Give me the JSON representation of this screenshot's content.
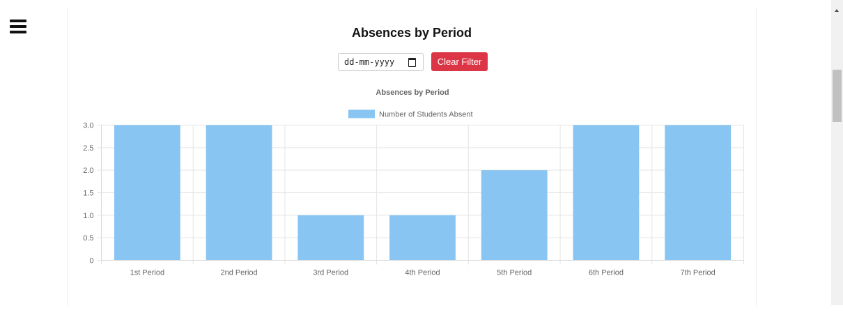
{
  "header": {
    "menu_icon": "hamburger-menu-icon"
  },
  "page": {
    "title": "Absences by Period"
  },
  "filter": {
    "date_placeholder": "dd-mm-yyyy",
    "calendar_icon": "calendar-icon",
    "clear_label": "Clear Filter",
    "clear_color": "#dc3545"
  },
  "chart_data": {
    "type": "bar",
    "title": "Absences by Period",
    "categories": [
      "1st Period",
      "2nd Period",
      "3rd Period",
      "4th Period",
      "5th Period",
      "6th Period",
      "7th Period"
    ],
    "series": [
      {
        "name": "Number of Students Absent",
        "values": [
          3,
          3,
          1,
          1,
          2,
          3,
          3
        ],
        "color": "#88c5f3"
      }
    ],
    "ylim": [
      0,
      3
    ],
    "yticks": [
      "0",
      "0.5",
      "1.0",
      "1.5",
      "2.0",
      "2.5",
      "3.0"
    ],
    "legend_position": "top",
    "grid": true
  }
}
